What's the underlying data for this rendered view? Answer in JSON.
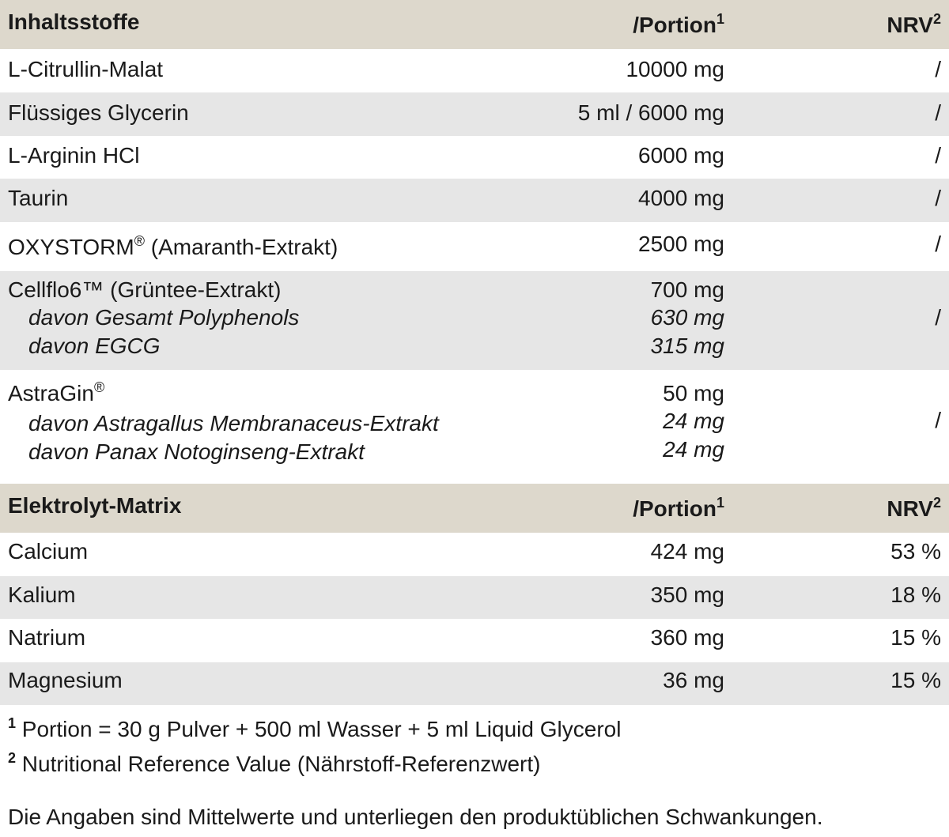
{
  "table1": {
    "header": {
      "col1": "Inhaltsstoffe",
      "col2": "/Portion",
      "col2_sup": "1",
      "col3": "NRV",
      "col3_sup": "2"
    },
    "rows": [
      {
        "name": "L-Citrullin-Malat",
        "portion": "10000 mg",
        "nrv": "/"
      },
      {
        "name": "Flüssiges Glycerin",
        "portion": "5 ml / 6000 mg",
        "nrv": "/"
      },
      {
        "name": "L-Arginin HCl",
        "portion": "6000 mg",
        "nrv": "/"
      },
      {
        "name": "Taurin",
        "portion": "4000 mg",
        "nrv": "/"
      },
      {
        "name": "OXYSTORM",
        "name_sup": "®",
        "name_suffix": " (Amaranth-Extrakt)",
        "portion": "2500 mg",
        "nrv": "/"
      },
      {
        "name": "Cellflo6™ (Grüntee-Extrakt)",
        "portion": "700 mg",
        "nrv": "/",
        "sub": [
          {
            "name": "davon Gesamt Polyphenols",
            "portion": "630 mg"
          },
          {
            "name": "davon EGCG",
            "portion": "315 mg"
          }
        ]
      },
      {
        "name": "AstraGin",
        "name_sup": "®",
        "portion": "50 mg",
        "nrv": "/",
        "sub": [
          {
            "name": "davon Astragallus Membranaceus-Extrakt",
            "portion": "24 mg"
          },
          {
            "name": "davon Panax Notoginseng-Extrakt",
            "portion": "24 mg"
          }
        ]
      }
    ]
  },
  "table2": {
    "header": {
      "col1": "Elektrolyt-Matrix",
      "col2": "/Portion",
      "col2_sup": "1",
      "col3": "NRV",
      "col3_sup": "2"
    },
    "rows": [
      {
        "name": "Calcium",
        "portion": "424 mg",
        "nrv": "53 %"
      },
      {
        "name": "Kalium",
        "portion": "350 mg",
        "nrv": "18 %"
      },
      {
        "name": "Natrium",
        "portion": "360 mg",
        "nrv": "15 %"
      },
      {
        "name": "Magnesium",
        "portion": "36 mg",
        "nrv": "15 %"
      }
    ]
  },
  "footnotes": [
    {
      "mark": "1",
      "text": " Portion = 30 g Pulver + 500 ml Wasser + 5 ml Liquid Glycerol"
    },
    {
      "mark": "2",
      "text": " Nutritional Reference Value (Nährstoff-Referenzwert)"
    }
  ],
  "disclaimer": "Die Angaben sind Mittelwerte und unterliegen den produktüblichen Schwankungen.",
  "colors": {
    "header_bg": "#ddd8cc",
    "alt_row_bg": "#e6e6e6",
    "text": "#1a1a1a"
  }
}
